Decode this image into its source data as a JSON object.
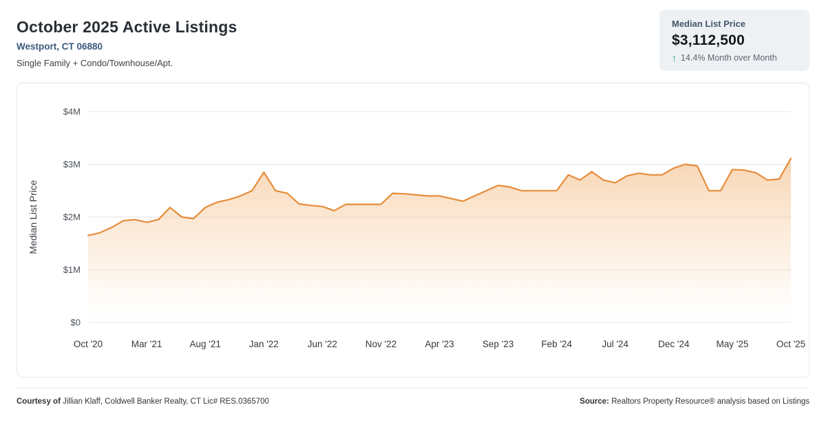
{
  "header": {
    "title": "October 2025 Active Listings",
    "location": "Westport, CT 06880",
    "property_types": "Single Family + Condo/Townhouse/Apt."
  },
  "stat_card": {
    "label": "Median List Price",
    "value": "$3,112,500",
    "arrow_icon": "arrow-up",
    "change_text": "14.4% Month over Month"
  },
  "colors": {
    "line_orange": "#e58c3a",
    "area_fill_top": "#f3ab66",
    "change_green": "#17a364",
    "location_blue": "#3c5a7d"
  },
  "chart_data": {
    "type": "area",
    "title": "Median List Price by month, Oct 2020 - Oct 2025",
    "ylabel": "Median List Price",
    "units": "USD millions",
    "ylim": [
      0,
      4
    ],
    "grid": "horizontal",
    "legend": "none",
    "line_color": "#e58c3a",
    "y_ticks": [
      {
        "value": 0,
        "label": "$0"
      },
      {
        "value": 1,
        "label": "$1M"
      },
      {
        "value": 2,
        "label": "$2M"
      },
      {
        "value": 3,
        "label": "$3M"
      },
      {
        "value": 4,
        "label": "$4M"
      }
    ],
    "x_ticks": [
      {
        "index": 0,
        "label": "Oct '20"
      },
      {
        "index": 5,
        "label": "Mar '21"
      },
      {
        "index": 10,
        "label": "Aug '21"
      },
      {
        "index": 15,
        "label": "Jan '22"
      },
      {
        "index": 20,
        "label": "Jun '22"
      },
      {
        "index": 25,
        "label": "Nov '22"
      },
      {
        "index": 30,
        "label": "Apr '23"
      },
      {
        "index": 35,
        "label": "Sep '23"
      },
      {
        "index": 40,
        "label": "Feb '24"
      },
      {
        "index": 45,
        "label": "Jul '24"
      },
      {
        "index": 50,
        "label": "Dec '24"
      },
      {
        "index": 55,
        "label": "May '25"
      },
      {
        "index": 60,
        "label": "Oct '25"
      }
    ],
    "x": [
      "Oct '20",
      "Nov '20",
      "Dec '20",
      "Jan '21",
      "Feb '21",
      "Mar '21",
      "Apr '21",
      "May '21",
      "Jun '21",
      "Jul '21",
      "Aug '21",
      "Sep '21",
      "Oct '21",
      "Nov '21",
      "Dec '21",
      "Jan '22",
      "Feb '22",
      "Mar '22",
      "Apr '22",
      "May '22",
      "Jun '22",
      "Jul '22",
      "Aug '22",
      "Sep '22",
      "Oct '22",
      "Nov '22",
      "Dec '22",
      "Jan '23",
      "Feb '23",
      "Mar '23",
      "Apr '23",
      "May '23",
      "Jun '23",
      "Jul '23",
      "Aug '23",
      "Sep '23",
      "Oct '23",
      "Nov '23",
      "Dec '23",
      "Jan '24",
      "Feb '24",
      "Mar '24",
      "Apr '24",
      "May '24",
      "Jun '24",
      "Jul '24",
      "Aug '24",
      "Sep '24",
      "Oct '24",
      "Nov '24",
      "Dec '24",
      "Jan '25",
      "Feb '25",
      "Mar '25",
      "Apr '25",
      "May '25",
      "Jun '25",
      "Jul '25",
      "Aug '25",
      "Sep '25",
      "Oct '25"
    ],
    "values": [
      1.65,
      1.7,
      1.8,
      1.93,
      1.95,
      1.9,
      1.95,
      2.18,
      2.0,
      1.97,
      2.18,
      2.28,
      2.33,
      2.4,
      2.5,
      2.85,
      2.5,
      2.45,
      2.25,
      2.22,
      2.2,
      2.12,
      2.24,
      2.24,
      2.24,
      2.24,
      2.45,
      2.44,
      2.42,
      2.4,
      2.4,
      2.35,
      2.3,
      2.4,
      2.5,
      2.6,
      2.57,
      2.5,
      2.5,
      2.5,
      2.5,
      2.8,
      2.7,
      2.86,
      2.7,
      2.65,
      2.78,
      2.83,
      2.8,
      2.8,
      2.93,
      3.0,
      2.97,
      2.5,
      2.5,
      2.9,
      2.89,
      2.84,
      2.7,
      2.72,
      3.1125
    ]
  },
  "footer": {
    "courtesy_label": "Courtesy of",
    "courtesy_text": "Jillian Klaff, Coldwell Banker Realty, CT Lic# RES.0365700",
    "source_label": "Source:",
    "source_text": "Realtors Property Resource® analysis based on Listings"
  }
}
